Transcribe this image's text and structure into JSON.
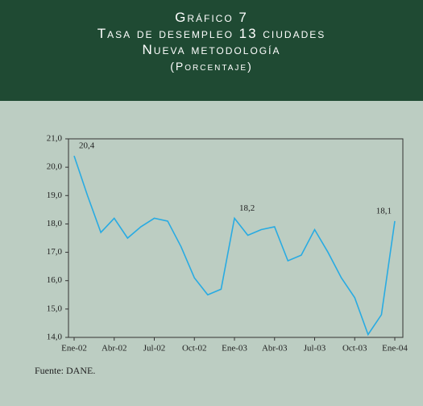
{
  "chart_data": {
    "type": "line",
    "title": [
      "Gráfico 7",
      "Tasa de desempleo 13 ciudades",
      "Nueva metodología",
      "(Porcentaje)"
    ],
    "categories": [
      "Ene-02",
      null,
      null,
      "Abr-02",
      null,
      null,
      "Jul-02",
      null,
      null,
      "Oct-02",
      null,
      null,
      "Ene-03",
      null,
      null,
      "Abr-03",
      null,
      null,
      "Jul-03",
      null,
      null,
      "Oct-03",
      null,
      null,
      "Ene-04"
    ],
    "values": [
      20.4,
      19.0,
      17.7,
      18.2,
      17.5,
      17.9,
      18.2,
      18.1,
      17.2,
      16.1,
      15.5,
      15.7,
      18.2,
      17.6,
      17.8,
      17.9,
      16.7,
      16.9,
      17.8,
      17.0,
      16.1,
      15.4,
      14.1,
      14.8,
      18.1
    ],
    "value_labels": [
      "20,4",
      null,
      null,
      null,
      null,
      null,
      null,
      null,
      null,
      null,
      null,
      null,
      "18,2",
      null,
      null,
      null,
      null,
      null,
      null,
      null,
      null,
      null,
      null,
      null,
      "18,1"
    ],
    "color": "#29abe2",
    "ylim": [
      14,
      21
    ],
    "yticks": [
      {
        "value": 14,
        "label": "14,0"
      },
      {
        "value": 15,
        "label": "15,0"
      },
      {
        "value": 16,
        "label": "16,0"
      },
      {
        "value": 17,
        "label": "17,0"
      },
      {
        "value": 18,
        "label": "18,0"
      },
      {
        "value": 19,
        "label": "19,0"
      },
      {
        "value": 20,
        "label": "20,0"
      },
      {
        "value": 21,
        "label": "21,0"
      }
    ],
    "source": "Fuente: DANE."
  }
}
